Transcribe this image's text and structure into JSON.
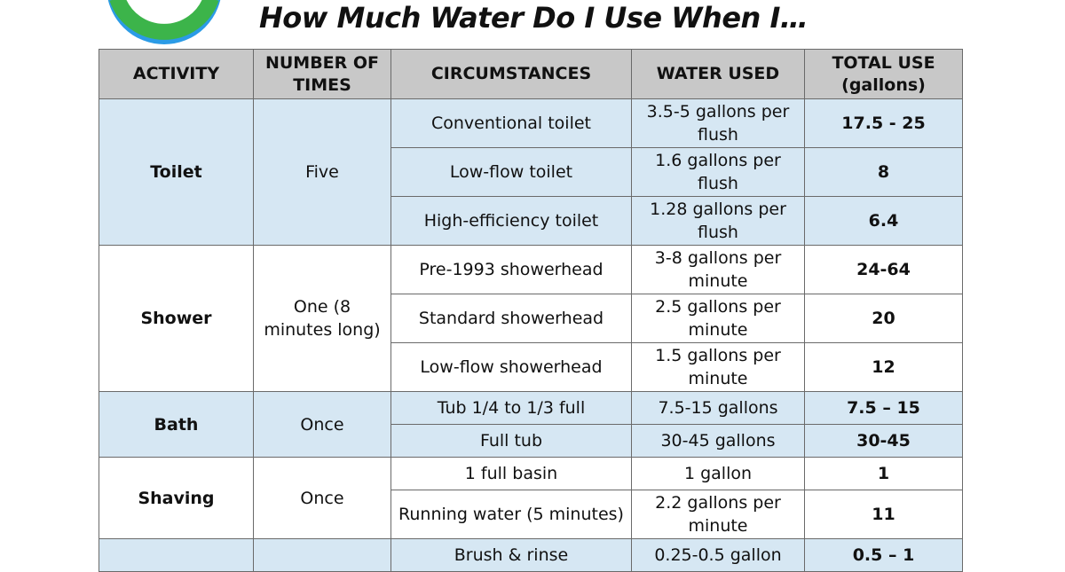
{
  "page": {
    "title": "How Much Water Do I Use When I…",
    "colors": {
      "header_bg": "#c8c8c8",
      "band_blue": "#d6e7f3",
      "logo_blue": "#2b9be6",
      "logo_green": "#3cb44a"
    },
    "logo_icon": "water-drop-circle-logo"
  },
  "table": {
    "headers": {
      "activity": "ACTIVITY",
      "times": "NUMBER OF TIMES",
      "circumstances": "CIRCUMSTANCES",
      "water_used": "WATER USED",
      "total_use": "TOTAL USE (gallons)"
    },
    "groups": [
      {
        "activity": "Toilet",
        "times": "Five",
        "rows": [
          {
            "circumstance": "Conventional toilet",
            "water_used": "3.5-5 gallons per flush",
            "total": "17.5 - 25"
          },
          {
            "circumstance": "Low-flow toilet",
            "water_used": "1.6 gallons per flush",
            "total": "8"
          },
          {
            "circumstance": "High-efficiency toilet",
            "water_used": "1.28 gallons per flush",
            "total": "6.4"
          }
        ]
      },
      {
        "activity": "Shower",
        "times": "One (8 minutes long)",
        "rows": [
          {
            "circumstance": "Pre-1993 showerhead",
            "water_used": "3-8 gallons per minute",
            "total": "24-64"
          },
          {
            "circumstance": "Standard showerhead",
            "water_used": "2.5 gallons per minute",
            "total": "20"
          },
          {
            "circumstance": "Low-flow showerhead",
            "water_used": "1.5 gallons per minute",
            "total": "12"
          }
        ]
      },
      {
        "activity": "Bath",
        "times": "Once",
        "rows": [
          {
            "circumstance": "Tub 1/4 to 1/3 full",
            "water_used": "7.5-15 gallons",
            "total": "7.5 – 15"
          },
          {
            "circumstance": "Full tub",
            "water_used": "30-45 gallons",
            "total": "30-45"
          }
        ]
      },
      {
        "activity": "Shaving",
        "times": "Once",
        "rows": [
          {
            "circumstance": "1 full basin",
            "water_used": "1 gallon",
            "total": "1"
          },
          {
            "circumstance": "Running water (5 minutes)",
            "water_used": "2.2 gallons per minute",
            "total": "11"
          }
        ]
      },
      {
        "activity": "",
        "times": "",
        "rows": [
          {
            "circumstance": "Brush & rinse",
            "water_used": "0.25-0.5 gallon",
            "total": "0.5 – 1"
          }
        ]
      }
    ]
  }
}
